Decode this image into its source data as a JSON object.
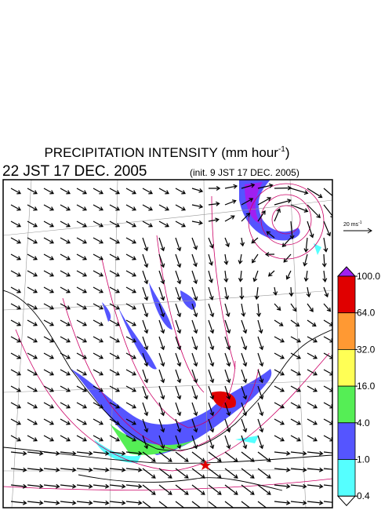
{
  "title": {
    "main": "PRECIPITATION INTENSITY (mm hour",
    "exponent": "-1",
    "close": ")"
  },
  "valid_time": "22 JST 17 DEC. 2005",
  "init_time": "(init. 9 JST 17 DEC. 2005)",
  "wind_scale": {
    "label": "20 ms",
    "exponent": "-1"
  },
  "colorbar": {
    "over_color": "#a020f0",
    "under_color": "#ffffff",
    "levels": [
      {
        "value": 100,
        "label": "100.0",
        "color": "#e00000"
      },
      {
        "value": 64,
        "label": "64.0",
        "color": "#ff9933"
      },
      {
        "value": 32,
        "label": "32.0",
        "color": "#ffff55"
      },
      {
        "value": 16,
        "label": "16.0",
        "color": "#55ee55"
      },
      {
        "value": 4,
        "label": "4.0",
        "color": "#5555ff"
      },
      {
        "value": 1,
        "label": "1.0",
        "color": "#55ffff"
      },
      {
        "value": 0.4,
        "label": "0.4"
      }
    ]
  }
}
